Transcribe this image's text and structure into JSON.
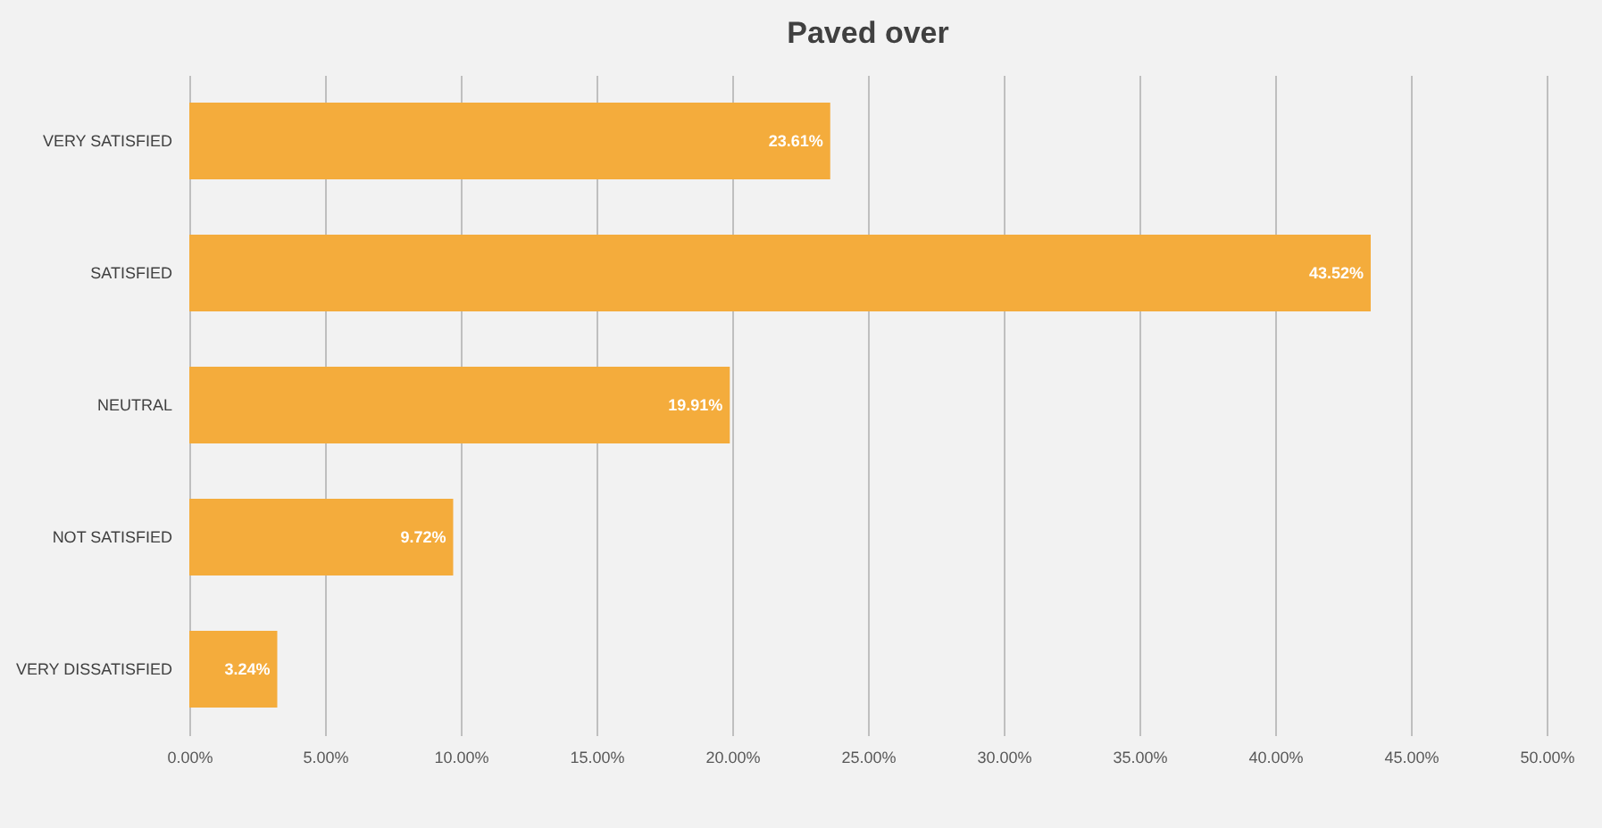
{
  "chart_data": {
    "type": "bar",
    "orientation": "horizontal",
    "title": "Paved over",
    "categories": [
      "VERY SATISFIED",
      "SATISFIED",
      "NEUTRAL",
      "NOT SATISFIED",
      "VERY DISSATISFIED"
    ],
    "values": [
      23.61,
      43.52,
      19.91,
      9.72,
      3.24
    ],
    "value_labels": [
      "23.61%",
      "43.52%",
      "19.91%",
      "9.72%",
      "3.24%"
    ],
    "color": "#f4ac3c",
    "xlim": [
      0,
      50
    ],
    "xticks": [
      {
        "value": 0,
        "label": "0.00%"
      },
      {
        "value": 5,
        "label": "5.00%"
      },
      {
        "value": 10,
        "label": "10.00%"
      },
      {
        "value": 15,
        "label": "15.00%"
      },
      {
        "value": 20,
        "label": "20.00%"
      },
      {
        "value": 25,
        "label": "25.00%"
      },
      {
        "value": 30,
        "label": "30.00%"
      },
      {
        "value": 35,
        "label": "35.00%"
      },
      {
        "value": 40,
        "label": "40.00%"
      },
      {
        "value": 45,
        "label": "45.00%"
      },
      {
        "value": 50,
        "label": "50.00%"
      }
    ],
    "grid": "x"
  }
}
